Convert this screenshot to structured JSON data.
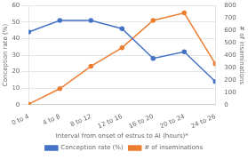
{
  "chart_data": {
    "type": "line",
    "categories": [
      "0 to 4",
      "4 to 8",
      "8 to 12",
      "12 to 16",
      "16 to 20",
      "20 to 24",
      "24 to 26"
    ],
    "series": [
      {
        "name": "Conception rate (%)",
        "color": "#4472c4",
        "marker": "circle",
        "values": [
          44,
          51,
          51,
          46,
          28,
          32,
          14
        ]
      },
      {
        "name": "# of inseminations",
        "color": "#ed7d31",
        "marker": "circle",
        "axis": "y2",
        "values": [
          5,
          130,
          310,
          460,
          680,
          740,
          330
        ]
      }
    ],
    "xlabel": "Interval from onset of estrus to AI (hours)*",
    "ylabel": "Conception rate (%)",
    "y2label": "# of inseminations",
    "ylim": [
      0,
      60
    ],
    "yticks": [
      0,
      10,
      20,
      30,
      40,
      50,
      60
    ],
    "y2lim": [
      0,
      800
    ],
    "y2ticks": [
      0,
      100,
      200,
      300,
      400,
      500,
      600,
      700,
      800
    ],
    "grid": true,
    "legend": "bottom"
  }
}
